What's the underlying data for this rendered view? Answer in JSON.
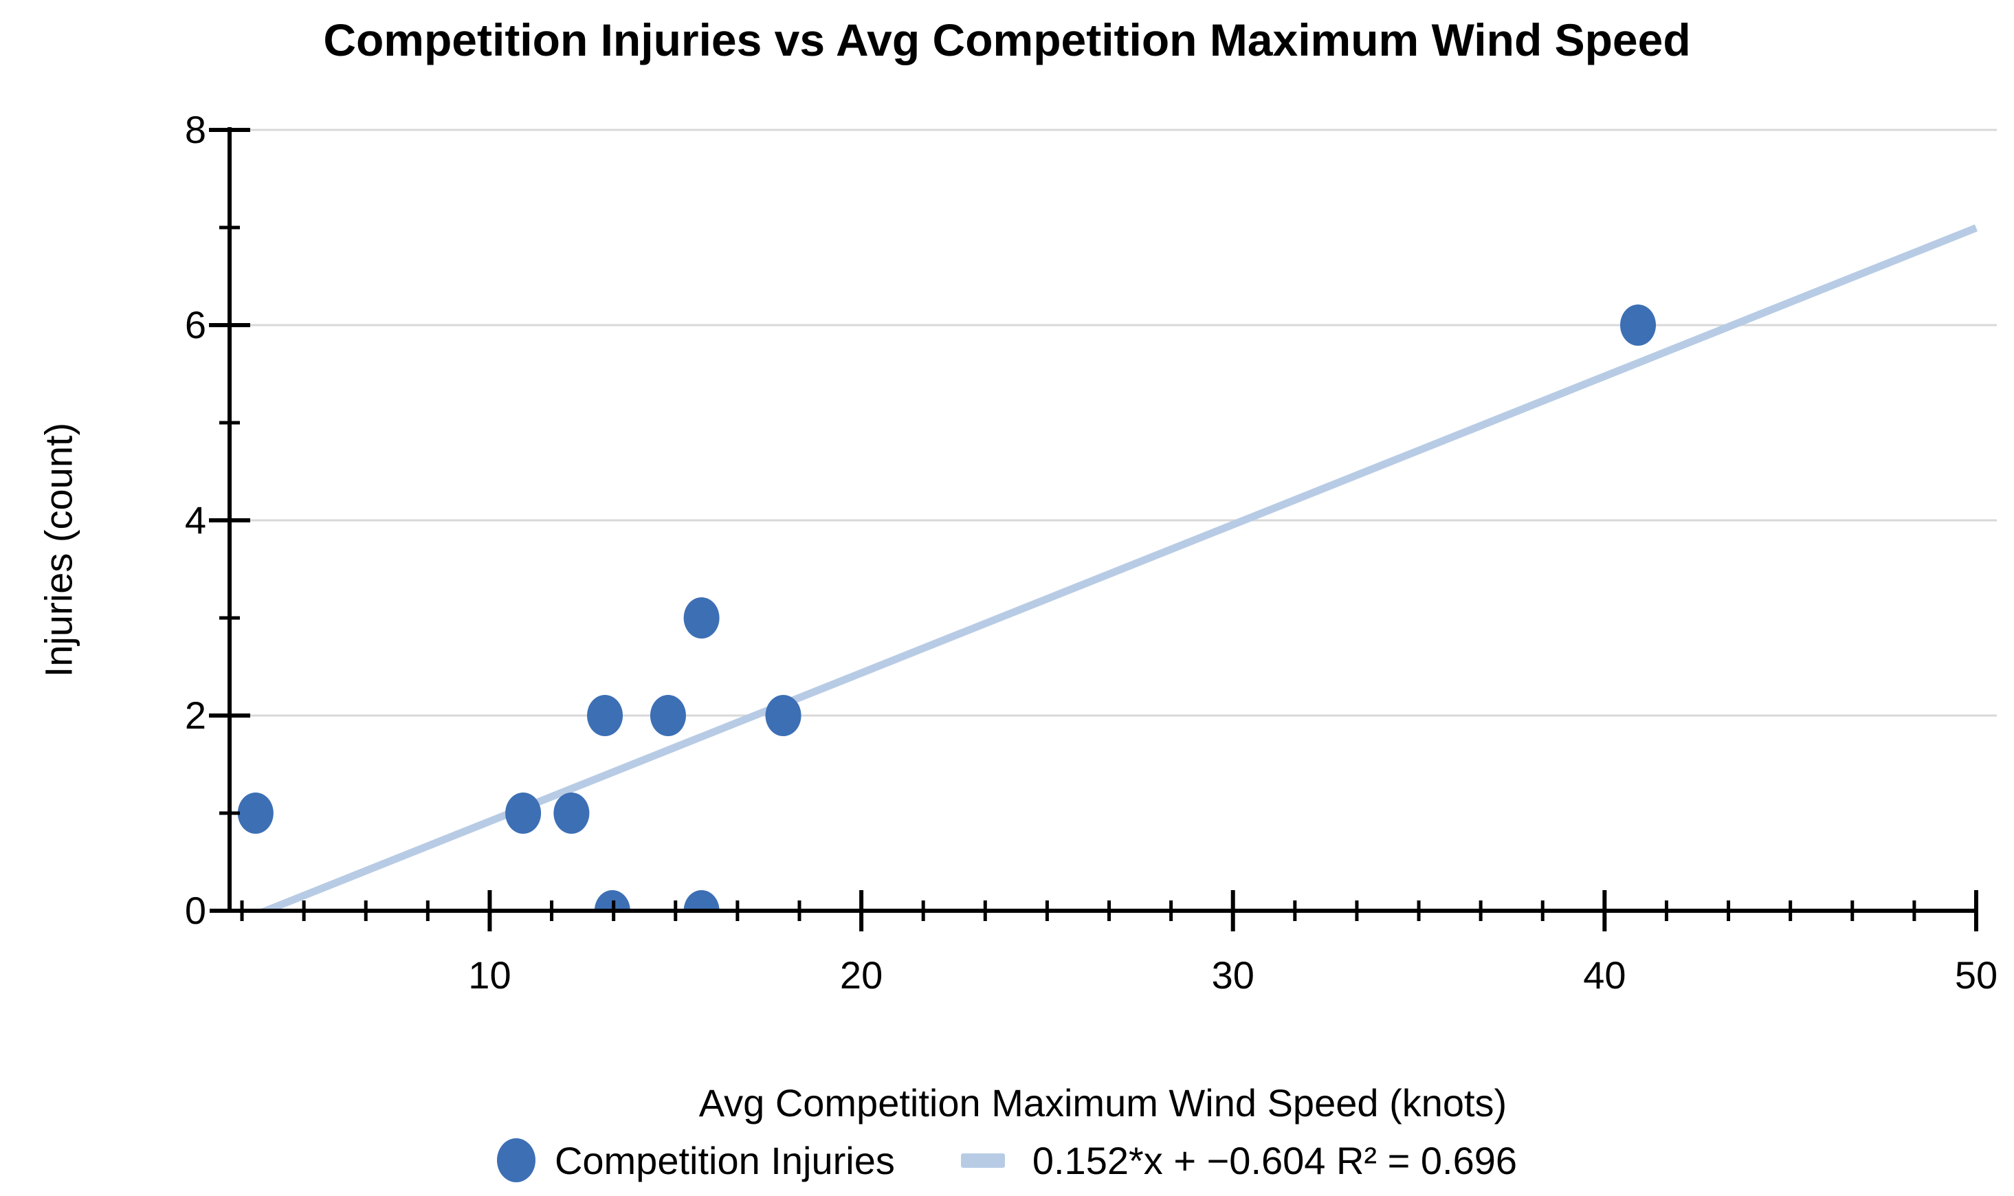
{
  "chart_data": {
    "type": "scatter",
    "title": "Competition Injuries vs Avg Competition Maximum Wind Speed",
    "xlabel": "Avg Competition Maximum Wind Speed (knots)",
    "ylabel": "Injuries (count)",
    "xlim": [
      3,
      50
    ],
    "ylim": [
      0,
      8
    ],
    "x_major_ticks": [
      10,
      20,
      30,
      40,
      50
    ],
    "x_minor_tick_step": 1.66667,
    "y_major_ticks": [
      0,
      2,
      4,
      6,
      8
    ],
    "y_minor_ticks": [
      1,
      3,
      5,
      7
    ],
    "grid_y_values": [
      2,
      4,
      6,
      8
    ],
    "grid_on": true,
    "legend_position": "bottom",
    "series": [
      {
        "name": "Competition Injuries",
        "color": "#3D6FB5",
        "points": [
          {
            "x": 3.7,
            "y": 1
          },
          {
            "x": 10.9,
            "y": 1
          },
          {
            "x": 12.2,
            "y": 1
          },
          {
            "x": 13.1,
            "y": 2
          },
          {
            "x": 13.3,
            "y": 0
          },
          {
            "x": 14.8,
            "y": 2
          },
          {
            "x": 15.7,
            "y": 3
          },
          {
            "x": 15.7,
            "y": 0
          },
          {
            "x": 17.9,
            "y": 2
          },
          {
            "x": 40.9,
            "y": 6
          }
        ]
      }
    ],
    "trendline": {
      "slope": 0.152,
      "intercept": -0.604,
      "r_squared": 0.696,
      "color": "#B7CBE5",
      "label": "0.152*x + −0.604 R² = 0.696"
    },
    "legend": {
      "entries": [
        {
          "marker": "circle",
          "label": "Competition Injuries",
          "color": "#3D6FB5"
        },
        {
          "marker": "line",
          "label": "0.152*x + −0.604 R² = 0.696",
          "color": "#B7CBE5"
        }
      ]
    }
  },
  "colors": {
    "background": "#FFFFFF",
    "gridline": "#D8D8D8",
    "axis": "#000000",
    "text": "#000000",
    "point": "#3D6FB5",
    "trendline": "#B7CBE5"
  }
}
